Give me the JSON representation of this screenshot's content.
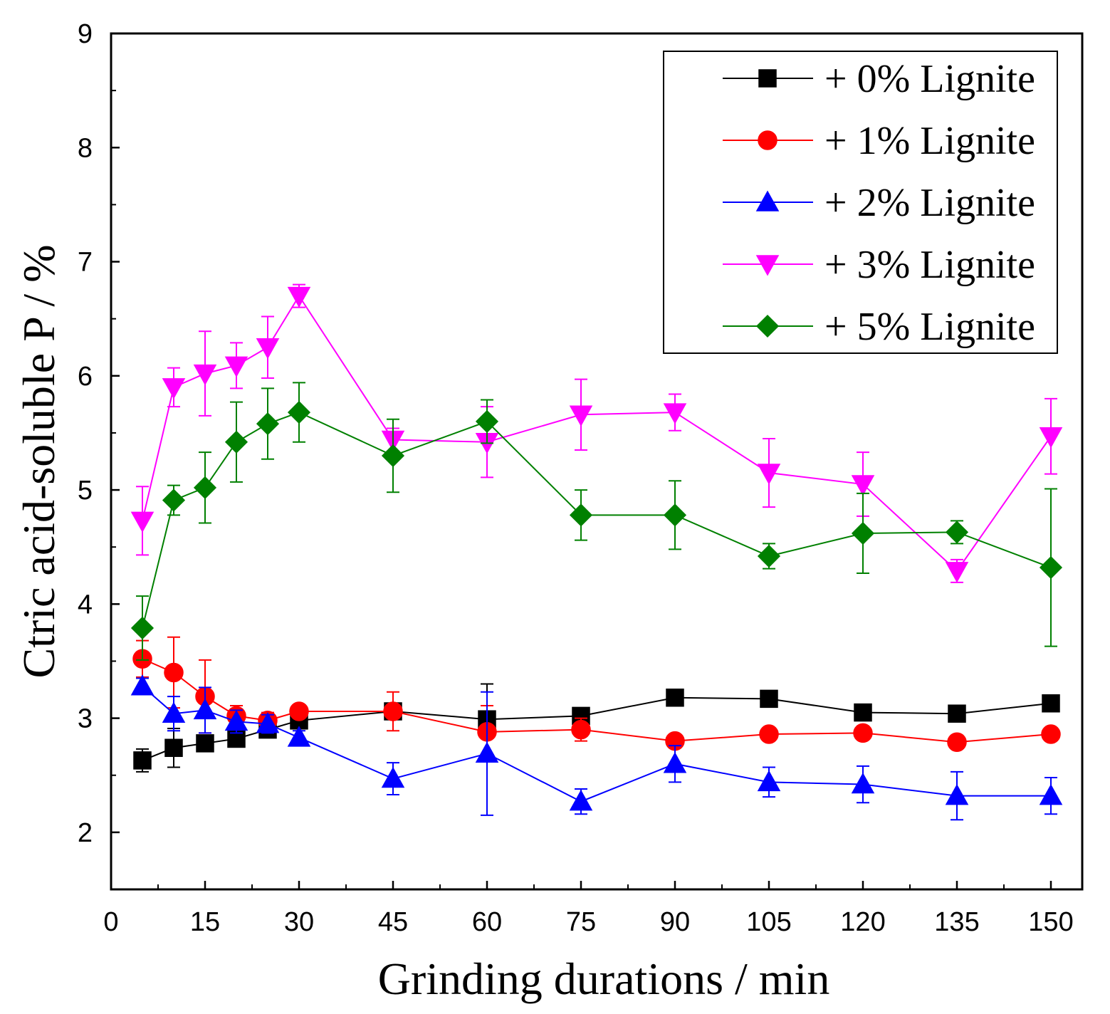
{
  "chart_data": {
    "type": "line",
    "title": "",
    "xlabel": "Grinding durations / min",
    "ylabel": "Ctric acid-soluble P / %",
    "xlim": [
      0,
      155
    ],
    "ylim": [
      1.5,
      9
    ],
    "xticks": [
      0,
      15,
      30,
      45,
      60,
      75,
      90,
      105,
      120,
      135,
      150
    ],
    "yticks": [
      2,
      3,
      4,
      5,
      6,
      7,
      8,
      9
    ],
    "legend_position": "top-right",
    "x": [
      5,
      10,
      15,
      20,
      25,
      30,
      45,
      60,
      75,
      90,
      105,
      120,
      135,
      150
    ],
    "series": [
      {
        "name": "+ 0% Lignite",
        "color": "#000000",
        "marker": "square",
        "values": [
          2.63,
          2.74,
          2.78,
          2.82,
          2.9,
          2.98,
          3.06,
          2.99,
          3.02,
          3.18,
          3.17,
          3.05,
          3.04,
          3.13
        ],
        "errors": [
          0.1,
          0.17,
          0.06,
          0.05,
          0.04,
          0.04,
          0.05,
          0.31,
          0.04,
          0.04,
          0.04,
          0.04,
          0.04,
          0.05
        ]
      },
      {
        "name": "+ 1% Lignite",
        "color": "#ff0000",
        "marker": "circle",
        "values": [
          3.52,
          3.4,
          3.19,
          3.02,
          2.98,
          3.06,
          3.06,
          2.88,
          2.9,
          2.8,
          2.86,
          2.87,
          2.79,
          2.86
        ],
        "errors": [
          0.16,
          0.31,
          0.32,
          0.09,
          0.07,
          0.05,
          0.17,
          0.23,
          0.1,
          0.05,
          0.05,
          0.06,
          0.04,
          0.05
        ]
      },
      {
        "name": "+ 2% Lignite",
        "color": "#0000ff",
        "marker": "triangle-up",
        "values": [
          3.28,
          3.04,
          3.07,
          2.97,
          2.95,
          2.83,
          2.47,
          2.69,
          2.27,
          2.6,
          2.44,
          2.42,
          2.32,
          2.32
        ],
        "errors": [
          0.07,
          0.15,
          0.2,
          0.1,
          0.08,
          0.06,
          0.14,
          0.54,
          0.11,
          0.16,
          0.13,
          0.16,
          0.21,
          0.16
        ]
      },
      {
        "name": "+ 3% Lignite",
        "color": "#ff00ff",
        "marker": "triangle-down",
        "values": [
          4.73,
          5.9,
          6.02,
          6.09,
          6.25,
          6.7,
          5.44,
          5.42,
          5.66,
          5.68,
          5.15,
          5.05,
          4.29,
          5.47
        ],
        "errors": [
          0.3,
          0.17,
          0.37,
          0.2,
          0.27,
          0.1,
          0.1,
          0.31,
          0.31,
          0.16,
          0.3,
          0.28,
          0.1,
          0.33
        ]
      },
      {
        "name": "+ 5% Lignite",
        "color": "#008000",
        "marker": "diamond",
        "values": [
          3.79,
          4.91,
          5.02,
          5.42,
          5.58,
          5.68,
          5.3,
          5.6,
          4.78,
          4.78,
          4.42,
          4.62,
          4.63,
          4.32
        ],
        "errors": [
          0.28,
          0.13,
          0.31,
          0.35,
          0.31,
          0.26,
          0.32,
          0.19,
          0.22,
          0.3,
          0.11,
          0.35,
          0.1,
          0.69
        ]
      }
    ]
  }
}
